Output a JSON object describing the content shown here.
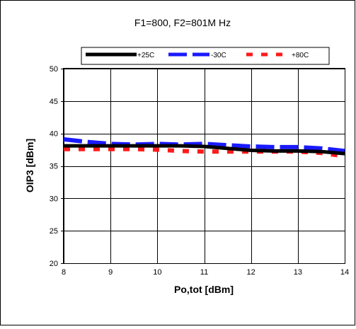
{
  "chart_data": {
    "type": "line",
    "title": "F1=800, F2=801M Hz",
    "xlabel": "Po,tot [dBm]",
    "ylabel": "OIP3 [dBm]",
    "xlim": [
      8,
      14
    ],
    "ylim": [
      20,
      50
    ],
    "xticks": [
      8,
      9,
      10,
      11,
      12,
      13,
      14
    ],
    "yticks": [
      20,
      25,
      30,
      35,
      40,
      45,
      50
    ],
    "grid": true,
    "legend_position": "top",
    "x": [
      8,
      8.5,
      9,
      9.5,
      10,
      10.5,
      11,
      11.5,
      12,
      12.5,
      13,
      13.5,
      14
    ],
    "series": [
      {
        "name": "+25C",
        "color": "#000000",
        "style": "solid",
        "values": [
          38.1,
          38.1,
          38.1,
          38.1,
          38.1,
          38.1,
          38.0,
          37.7,
          37.4,
          37.3,
          37.3,
          37.2,
          36.9
        ]
      },
      {
        "name": "-30C",
        "color": "#1a1aff",
        "style": "long-dash",
        "values": [
          39.1,
          38.7,
          38.4,
          38.3,
          38.4,
          38.3,
          38.4,
          38.2,
          38.0,
          37.9,
          37.9,
          37.7,
          37.3
        ]
      },
      {
        "name": "+80C",
        "color": "#ff1a1a",
        "style": "short-dash",
        "values": [
          37.6,
          37.6,
          37.6,
          37.6,
          37.5,
          37.3,
          37.2,
          37.2,
          37.2,
          37.2,
          37.2,
          37.0,
          36.5
        ]
      }
    ]
  }
}
